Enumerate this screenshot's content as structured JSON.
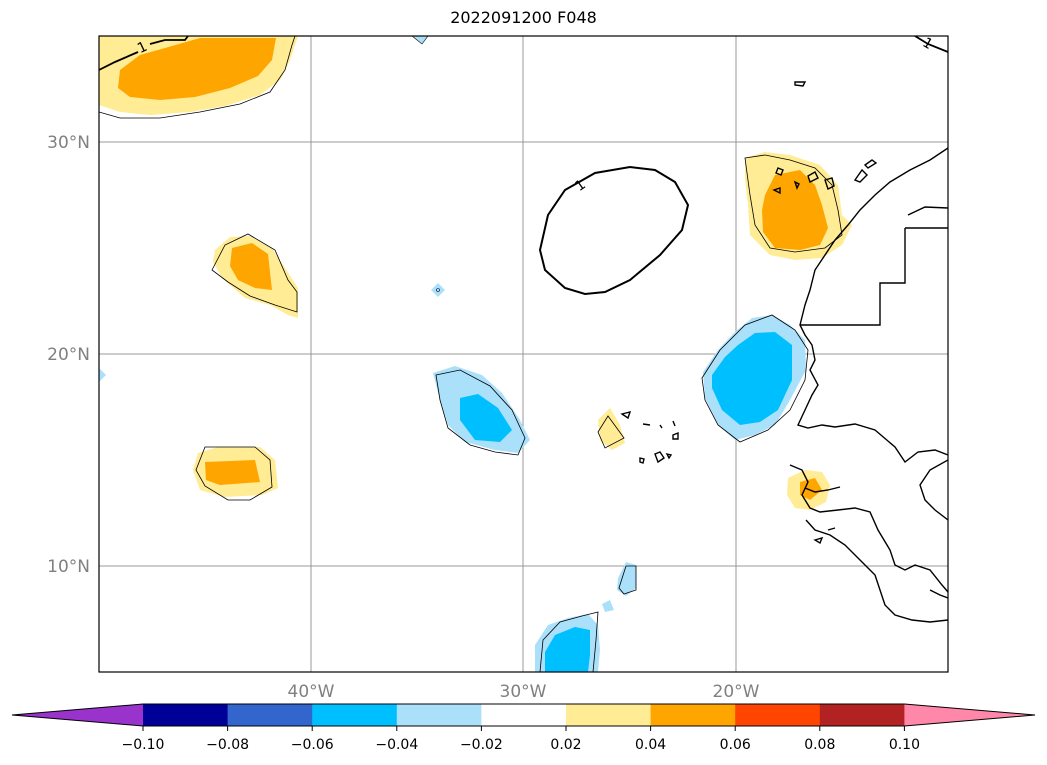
{
  "title": "2022091200 F048",
  "map": {
    "lat_labels": [
      "30°N",
      "20°N",
      "10°N"
    ],
    "lon_labels": [
      "40°W",
      "30°W",
      "20°W"
    ],
    "contour_label": "1"
  },
  "colorbar": {
    "colors": [
      "#9933cc",
      "#000099",
      "#3366cc",
      "#00bfff",
      "#abe0fa",
      "#ffffff",
      "#ffec94",
      "#ffa500",
      "#ff4500",
      "#b22222",
      "#ff88aa"
    ],
    "tick_labels": [
      "−0.10",
      "−0.08",
      "−0.06",
      "−0.04",
      "−0.02",
      "0.02",
      "0.04",
      "0.06",
      "0.08",
      "0.10"
    ]
  }
}
